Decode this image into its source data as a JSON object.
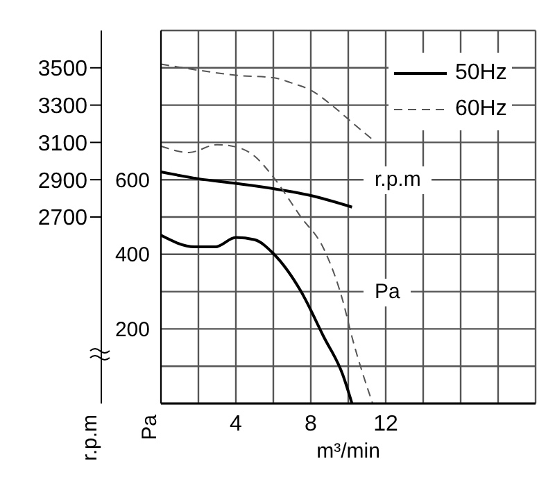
{
  "chart_data": {
    "type": "line",
    "xlabel": "m³/min",
    "ylabel": "Pa",
    "y2label": "r.p.m",
    "xlim": [
      0,
      20
    ],
    "xticks": [
      {
        "value": 0,
        "label": null
      },
      {
        "value": 2,
        "label": null
      },
      4,
      {
        "value": 6,
        "label": null
      },
      8,
      {
        "value": 10,
        "label": null
      },
      12,
      {
        "value": 14,
        "label": null
      },
      {
        "value": 16,
        "label": null
      },
      {
        "value": 18,
        "label": null
      },
      {
        "value": 20,
        "label": null
      }
    ],
    "ylim": [
      0,
      1000
    ],
    "yticks": [
      {
        "value": 0,
        "label": null
      },
      {
        "value": 100,
        "label": null
      },
      200,
      {
        "value": 300,
        "label": null
      },
      400,
      {
        "value": 500,
        "label": null
      },
      600,
      {
        "value": 700,
        "label": null
      },
      {
        "value": 800,
        "label": null
      },
      {
        "value": 900,
        "label": null
      },
      {
        "value": 1000,
        "label": null
      }
    ],
    "y2lim": [
      1700,
      3700
    ],
    "y2ticks": [
      2700,
      2900,
      3100,
      3300,
      3500
    ],
    "grid": true,
    "legend": "top right",
    "marker": "none",
    "annotations": [
      "r.p.m",
      "Pa"
    ],
    "series": [
      {
        "name": "50Hz",
        "color": "#000000",
        "line_style": "solid",
        "axis": "y2",
        "x": [
          0,
          2,
          4,
          6,
          8,
          10.2
        ],
        "values": [
          2942,
          2905,
          2880,
          2852,
          2815,
          2753
        ]
      },
      {
        "name": "60Hz",
        "color": "#555555",
        "line_style": "dashed",
        "axis": "y2",
        "x": [
          0,
          2,
          4,
          6,
          7,
          8,
          9.2,
          10.2,
          11.4
        ],
        "values": [
          3520,
          3487,
          3460,
          3447,
          3418,
          3380,
          3293,
          3207,
          3107
        ]
      },
      {
        "color": "#000000",
        "line_style": "solid",
        "x": [
          0,
          1.8,
          2.9,
          4,
          5,
          6,
          7.46,
          8.7,
          9.7,
          10.2
        ],
        "values": [
          451,
          420,
          420,
          445,
          439,
          402,
          302,
          178,
          78,
          0
        ]
      },
      {
        "color": "#555555",
        "line_style": "dashed",
        "x": [
          0,
          1.5,
          3,
          4,
          5,
          6,
          7.46,
          8.7,
          9.7,
          10.2,
          11.3
        ],
        "values": [
          690,
          673,
          694,
          688,
          663,
          607,
          501,
          414,
          277,
          178,
          0
        ]
      }
    ]
  }
}
